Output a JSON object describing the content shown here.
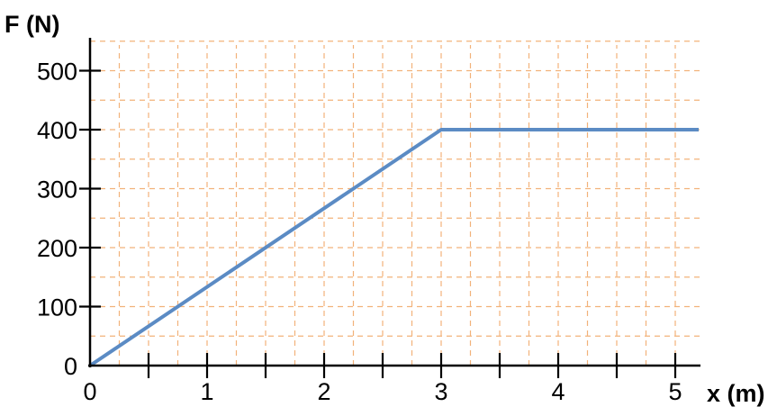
{
  "chart_data": {
    "type": "line",
    "xlabel": "x (m)",
    "ylabel": "F (N)",
    "xlim": [
      0,
      5.2
    ],
    "ylim": [
      0,
      550
    ],
    "x_ticks": [
      0,
      1,
      2,
      3,
      4,
      5
    ],
    "x_tick_labels": [
      "0",
      "1",
      "2",
      "3",
      "4",
      "5"
    ],
    "x_minor_step": 0.5,
    "y_ticks": [
      0,
      100,
      200,
      300,
      400,
      500
    ],
    "y_tick_labels": [
      "0",
      "100",
      "200",
      "300",
      "400",
      "500"
    ],
    "grid": true,
    "grid_x_step": 0.25,
    "grid_y_step": 50,
    "grid_color": "#f2b27a",
    "series": [
      {
        "color": "#5b8bc4",
        "points": [
          {
            "x": 0,
            "y": 0
          },
          {
            "x": 3,
            "y": 400
          },
          {
            "x": 5.2,
            "y": 400
          }
        ]
      }
    ]
  }
}
